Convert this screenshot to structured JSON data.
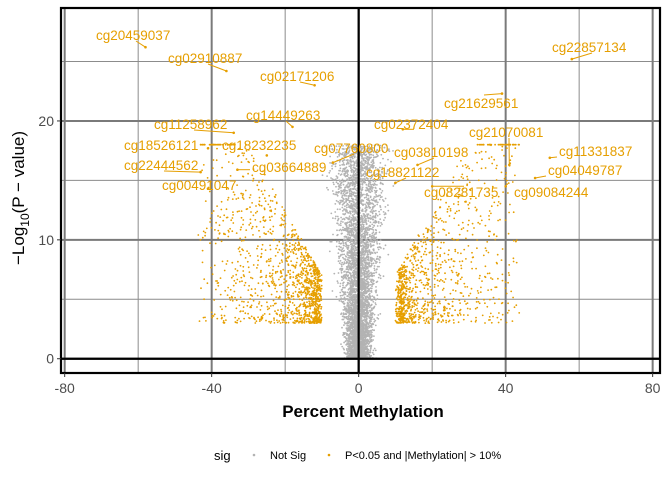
{
  "chart_data": {
    "type": "scatter",
    "xlabel": "Percent Methylation",
    "ylabel_parts": [
      "−Log",
      "10",
      "(P − value)"
    ],
    "xlim": [
      -81,
      82
    ],
    "ylim": [
      -1.2,
      29.5
    ],
    "x_ticks": [
      -80,
      -40,
      0,
      40,
      80
    ],
    "x_tick_labels": [
      "-80",
      "-40",
      "0",
      "40",
      "80"
    ],
    "y_ticks": [
      0,
      10,
      20
    ],
    "y_tick_labels": [
      "0",
      "10",
      "20"
    ],
    "minor_x": [
      -60,
      -20,
      20,
      60
    ],
    "minor_y": [
      5,
      15,
      25
    ],
    "grid": true,
    "reference_lines": {
      "x": 0,
      "y": 0
    },
    "colors": {
      "not_sig": "#B3B3B3",
      "sig": "#E69F00",
      "grid": "#8c8c8c"
    },
    "legend": {
      "position": "bottom",
      "title": "sig",
      "entries": [
        {
          "label": "Not Sig",
          "color": "#B3B3B3"
        },
        {
          "label": "P<0.05 and |Methylation| > 10%",
          "color": "#E69F00"
        }
      ]
    },
    "thresholds": {
      "methylation_pct": 10,
      "min_sig_y": 3
    },
    "labeled_points": [
      {
        "label": "cg20459037",
        "x": -58,
        "y": 26.2
      },
      {
        "label": "cg02910887",
        "x": -36,
        "y": 24.2
      },
      {
        "label": "cg02171206",
        "x": -12,
        "y": 23
      },
      {
        "label": "cg22857134",
        "x": 58,
        "y": 25.2
      },
      {
        "label": "cg14449263",
        "x": -18,
        "y": 19.5
      },
      {
        "label": "cg11258962",
        "x": -34,
        "y": 19
      },
      {
        "label": "cg21629561",
        "x": 39,
        "y": 22.3
      },
      {
        "label": "cg02372404",
        "x": 12,
        "y": 19.3
      },
      {
        "label": "cg21070081",
        "x": 41,
        "y": 16.3
      },
      {
        "label": "cg18526121",
        "x": -41,
        "y": 17.7
      },
      {
        "label": "cg18232235",
        "x": -25,
        "y": 17.1
      },
      {
        "label": "cg07760800",
        "x": -7,
        "y": 16.5
      },
      {
        "label": "cg03810198",
        "x": 16,
        "y": 16.3
      },
      {
        "label": "cg11331837",
        "x": 52,
        "y": 16.9
      },
      {
        "label": "cg22444562",
        "x": -43,
        "y": 15.7
      },
      {
        "label": "cg03664889",
        "x": -33,
        "y": 15.9
      },
      {
        "label": "cg18821122",
        "x": 10,
        "y": 14.8
      },
      {
        "label": "cg04049787",
        "x": 48,
        "y": 15.2
      },
      {
        "label": "cg00491047",
        "x": -41,
        "y": 14.3
      },
      {
        "label": "cg08281735",
        "x": 20,
        "y": 14.5
      },
      {
        "label": "cg09084244",
        "x": 40,
        "y": 14.5
      }
    ],
    "label_anchors": [
      [
        96,
        40
      ],
      [
        168,
        63
      ],
      [
        260,
        81
      ],
      [
        552,
        52
      ],
      [
        246,
        120
      ],
      [
        154,
        129
      ],
      [
        444,
        108
      ],
      [
        374,
        129
      ],
      [
        469,
        137
      ],
      [
        124,
        150
      ],
      [
        222,
        150
      ],
      [
        314,
        153
      ],
      [
        394,
        157
      ],
      [
        559,
        156
      ],
      [
        124,
        170
      ],
      [
        252,
        172
      ],
      [
        366,
        177
      ],
      [
        548,
        175
      ],
      [
        162,
        190
      ],
      [
        424,
        197
      ],
      [
        514,
        197
      ]
    ]
  }
}
